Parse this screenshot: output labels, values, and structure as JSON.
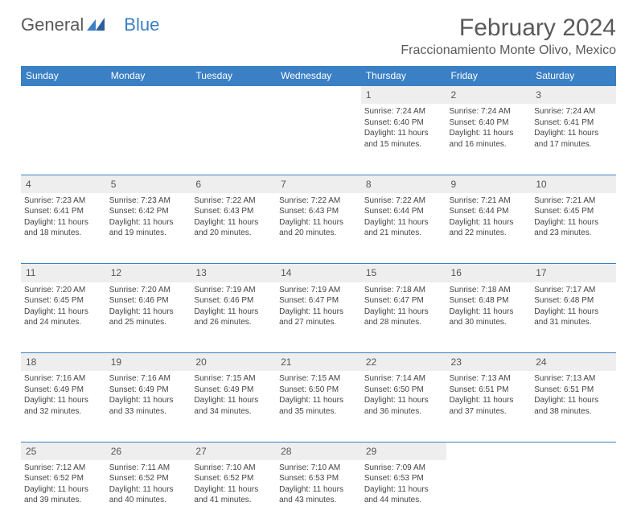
{
  "logo": {
    "part1": "General",
    "part2": "Blue"
  },
  "title": "February 2024",
  "location": "Fraccionamiento Monte Olivo, Mexico",
  "colors": {
    "header_bg": "#3b7fc4",
    "header_text": "#ffffff",
    "daynum_bg": "#eeeeee",
    "text": "#444444",
    "title_text": "#5a5a5a"
  },
  "day_headers": [
    "Sunday",
    "Monday",
    "Tuesday",
    "Wednesday",
    "Thursday",
    "Friday",
    "Saturday"
  ],
  "weeks": [
    [
      null,
      null,
      null,
      null,
      {
        "n": "1",
        "sr": "7:24 AM",
        "ss": "6:40 PM",
        "dl": "11 hours and 15 minutes."
      },
      {
        "n": "2",
        "sr": "7:24 AM",
        "ss": "6:40 PM",
        "dl": "11 hours and 16 minutes."
      },
      {
        "n": "3",
        "sr": "7:24 AM",
        "ss": "6:41 PM",
        "dl": "11 hours and 17 minutes."
      }
    ],
    [
      {
        "n": "4",
        "sr": "7:23 AM",
        "ss": "6:41 PM",
        "dl": "11 hours and 18 minutes."
      },
      {
        "n": "5",
        "sr": "7:23 AM",
        "ss": "6:42 PM",
        "dl": "11 hours and 19 minutes."
      },
      {
        "n": "6",
        "sr": "7:22 AM",
        "ss": "6:43 PM",
        "dl": "11 hours and 20 minutes."
      },
      {
        "n": "7",
        "sr": "7:22 AM",
        "ss": "6:43 PM",
        "dl": "11 hours and 20 minutes."
      },
      {
        "n": "8",
        "sr": "7:22 AM",
        "ss": "6:44 PM",
        "dl": "11 hours and 21 minutes."
      },
      {
        "n": "9",
        "sr": "7:21 AM",
        "ss": "6:44 PM",
        "dl": "11 hours and 22 minutes."
      },
      {
        "n": "10",
        "sr": "7:21 AM",
        "ss": "6:45 PM",
        "dl": "11 hours and 23 minutes."
      }
    ],
    [
      {
        "n": "11",
        "sr": "7:20 AM",
        "ss": "6:45 PM",
        "dl": "11 hours and 24 minutes."
      },
      {
        "n": "12",
        "sr": "7:20 AM",
        "ss": "6:46 PM",
        "dl": "11 hours and 25 minutes."
      },
      {
        "n": "13",
        "sr": "7:19 AM",
        "ss": "6:46 PM",
        "dl": "11 hours and 26 minutes."
      },
      {
        "n": "14",
        "sr": "7:19 AM",
        "ss": "6:47 PM",
        "dl": "11 hours and 27 minutes."
      },
      {
        "n": "15",
        "sr": "7:18 AM",
        "ss": "6:47 PM",
        "dl": "11 hours and 28 minutes."
      },
      {
        "n": "16",
        "sr": "7:18 AM",
        "ss": "6:48 PM",
        "dl": "11 hours and 30 minutes."
      },
      {
        "n": "17",
        "sr": "7:17 AM",
        "ss": "6:48 PM",
        "dl": "11 hours and 31 minutes."
      }
    ],
    [
      {
        "n": "18",
        "sr": "7:16 AM",
        "ss": "6:49 PM",
        "dl": "11 hours and 32 minutes."
      },
      {
        "n": "19",
        "sr": "7:16 AM",
        "ss": "6:49 PM",
        "dl": "11 hours and 33 minutes."
      },
      {
        "n": "20",
        "sr": "7:15 AM",
        "ss": "6:49 PM",
        "dl": "11 hours and 34 minutes."
      },
      {
        "n": "21",
        "sr": "7:15 AM",
        "ss": "6:50 PM",
        "dl": "11 hours and 35 minutes."
      },
      {
        "n": "22",
        "sr": "7:14 AM",
        "ss": "6:50 PM",
        "dl": "11 hours and 36 minutes."
      },
      {
        "n": "23",
        "sr": "7:13 AM",
        "ss": "6:51 PM",
        "dl": "11 hours and 37 minutes."
      },
      {
        "n": "24",
        "sr": "7:13 AM",
        "ss": "6:51 PM",
        "dl": "11 hours and 38 minutes."
      }
    ],
    [
      {
        "n": "25",
        "sr": "7:12 AM",
        "ss": "6:52 PM",
        "dl": "11 hours and 39 minutes."
      },
      {
        "n": "26",
        "sr": "7:11 AM",
        "ss": "6:52 PM",
        "dl": "11 hours and 40 minutes."
      },
      {
        "n": "27",
        "sr": "7:10 AM",
        "ss": "6:52 PM",
        "dl": "11 hours and 41 minutes."
      },
      {
        "n": "28",
        "sr": "7:10 AM",
        "ss": "6:53 PM",
        "dl": "11 hours and 43 minutes."
      },
      {
        "n": "29",
        "sr": "7:09 AM",
        "ss": "6:53 PM",
        "dl": "11 hours and 44 minutes."
      },
      null,
      null
    ]
  ],
  "labels": {
    "sunrise": "Sunrise:",
    "sunset": "Sunset:",
    "daylight": "Daylight:"
  }
}
